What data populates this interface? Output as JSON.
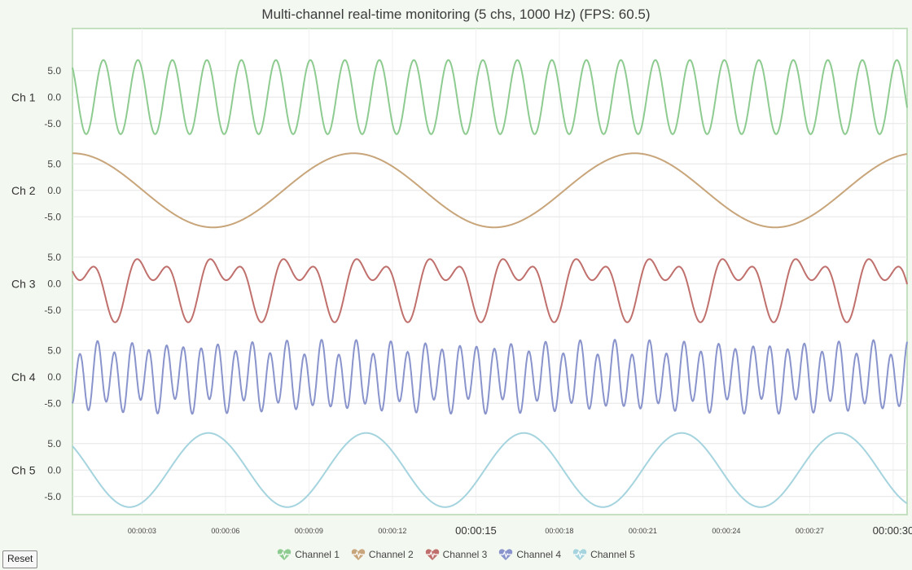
{
  "title": "Multi-channel real-time monitoring (5 chs, 1000 Hz) (FPS: 60.5)",
  "reset_label": "Reset",
  "colors": {
    "background": "#f3f8f1",
    "plot_border": "#c5e0c0",
    "grid": "#e6e6e6"
  },
  "chart_data": {
    "type": "line",
    "title": "Multi-channel real-time monitoring (5 chs, 1000 Hz) (FPS: 60.5)",
    "x_range": [
      0.5,
      30.5
    ],
    "x_unit": "seconds",
    "x_ticks": [
      {
        "t": 3,
        "label": "00:00:03",
        "major": false
      },
      {
        "t": 6,
        "label": "00:00:06",
        "major": false
      },
      {
        "t": 9,
        "label": "00:00:09",
        "major": false
      },
      {
        "t": 12,
        "label": "00:00:12",
        "major": false
      },
      {
        "t": 15,
        "label": "00:00:15",
        "major": true
      },
      {
        "t": 18,
        "label": "00:00:18",
        "major": false
      },
      {
        "t": 21,
        "label": "00:00:21",
        "major": false
      },
      {
        "t": 24,
        "label": "00:00:24",
        "major": false
      },
      {
        "t": 27,
        "label": "00:00:27",
        "major": false
      },
      {
        "t": 30,
        "label": "00:00:30",
        "major": true
      }
    ],
    "y_range": [
      -9,
      9
    ],
    "y_ticks": [
      5,
      0,
      -5
    ],
    "y_tick_labels": [
      "5.0",
      "0.0",
      "-5.0"
    ],
    "grid": true,
    "legend_position": "bottom",
    "series": [
      {
        "name": "Channel 1",
        "axis_label": "Ch 1",
        "color": "#8ecb90",
        "waveform": "sine",
        "amplitude": 7,
        "period": 1.24,
        "phase": 0.95
      },
      {
        "name": "Channel 2",
        "axis_label": "Ch 2",
        "color": "#c8a57a",
        "waveform": "sine",
        "amplitude": 7,
        "period": 10.1,
        "phase": 0.2
      },
      {
        "name": "Channel 3",
        "axis_label": "Ch 3",
        "color": "#c0706c",
        "waveform": "two-tone",
        "amplitude": 7,
        "period": 2.63,
        "phase": 0.0
      },
      {
        "name": "Channel 4",
        "axis_label": "Ch 4",
        "color": "#8a94cc",
        "waveform": "two-tone-beat",
        "amplitude": 7,
        "period": 0.62,
        "phase": 0.0
      },
      {
        "name": "Channel 5",
        "axis_label": "Ch 5",
        "color": "#a5d4df",
        "waveform": "sine",
        "amplitude": 7,
        "period": 5.67,
        "phase": 0.3
      }
    ]
  }
}
